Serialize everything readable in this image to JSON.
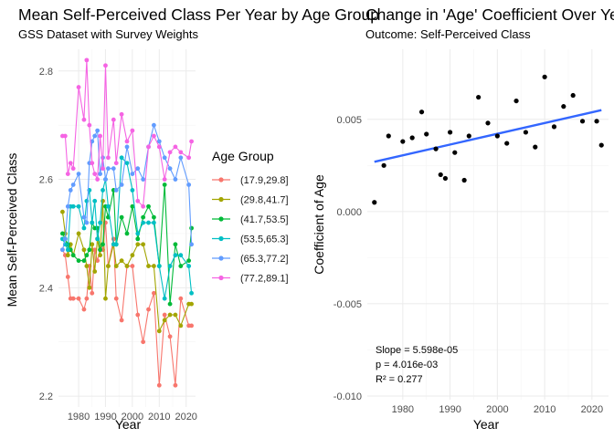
{
  "colors": {
    "background": "#ffffff",
    "grid": "#ebebeb",
    "trend_line": "#3366ff",
    "scatter_points": "#000000"
  },
  "chart_data": [
    {
      "type": "line",
      "title": "Mean Self-Perceived Class Per Year by Age Group",
      "subtitle": "GSS Dataset with Survey Weights",
      "xlabel": "Year",
      "ylabel": "Mean Self-Perceived Class",
      "xlim": [
        1972.5,
        2023.5
      ],
      "ylim": [
        2.18,
        2.84
      ],
      "xticks": [
        1980,
        1990,
        2000,
        2010,
        2020
      ],
      "yticks": [
        2.2,
        2.4,
        2.6,
        2.8
      ],
      "ytick_labels": [
        "2.2",
        "2.4",
        "2.6",
        "2.8"
      ],
      "grid": true,
      "legend": {
        "title": "Age Group",
        "position": "right"
      },
      "x": [
        1974,
        1975,
        1976,
        1977,
        1978,
        1980,
        1982,
        1983,
        1984,
        1985,
        1986,
        1987,
        1988,
        1989,
        1990,
        1991,
        1993,
        1994,
        1996,
        1998,
        2000,
        2002,
        2004,
        2006,
        2008,
        2010,
        2012,
        2014,
        2016,
        2018,
        2021,
        2022
      ],
      "series": [
        {
          "name": "(17.9,29.8]",
          "color": "#f8766d",
          "values": [
            2.47,
            2.46,
            2.42,
            2.38,
            2.38,
            2.38,
            2.36,
            2.38,
            2.44,
            2.39,
            2.47,
            2.45,
            2.47,
            2.47,
            2.52,
            2.44,
            2.49,
            2.38,
            2.34,
            2.44,
            2.44,
            2.35,
            2.3,
            2.36,
            2.39,
            2.22,
            2.35,
            2.31,
            2.22,
            2.38,
            2.33,
            2.33
          ]
        },
        {
          "name": "(29.8,41.7]",
          "color": "#a3a500",
          "values": [
            2.54,
            2.5,
            2.46,
            2.48,
            2.46,
            2.5,
            2.47,
            2.44,
            2.4,
            2.48,
            2.43,
            2.49,
            2.46,
            2.56,
            2.38,
            2.44,
            2.48,
            2.44,
            2.45,
            2.44,
            2.46,
            2.48,
            2.48,
            2.44,
            2.44,
            2.32,
            2.34,
            2.35,
            2.35,
            2.33,
            2.37,
            2.37
          ]
        },
        {
          "name": "(41.7,53.5]",
          "color": "#00ba38",
          "values": [
            2.5,
            2.49,
            2.48,
            2.47,
            2.46,
            2.45,
            2.45,
            2.46,
            2.47,
            2.52,
            2.51,
            2.51,
            2.47,
            2.48,
            2.55,
            2.53,
            2.58,
            2.48,
            2.53,
            2.5,
            2.55,
            2.49,
            2.53,
            2.55,
            2.53,
            2.44,
            2.59,
            2.37,
            2.48,
            2.44,
            2.45,
            2.51
          ]
        },
        {
          "name": "(53.5,65.3]",
          "color": "#00bfc4",
          "values": [
            2.49,
            2.48,
            2.47,
            2.55,
            2.55,
            2.55,
            2.51,
            2.56,
            2.58,
            2.52,
            2.56,
            2.49,
            2.52,
            2.58,
            2.6,
            2.55,
            2.48,
            2.48,
            2.64,
            2.63,
            2.58,
            2.5,
            2.52,
            2.52,
            2.52,
            2.44,
            2.38,
            2.44,
            2.46,
            2.46,
            2.44,
            2.39
          ]
        },
        {
          "name": "(65.3,77.2]",
          "color": "#619cff",
          "values": [
            2.47,
            2.49,
            2.55,
            2.58,
            2.59,
            2.61,
            2.53,
            2.52,
            2.63,
            2.67,
            2.68,
            2.69,
            2.61,
            2.64,
            2.6,
            2.62,
            2.62,
            2.58,
            2.59,
            2.66,
            2.61,
            2.62,
            2.6,
            2.66,
            2.7,
            2.67,
            2.64,
            2.62,
            2.6,
            2.64,
            2.59,
            2.48
          ]
        },
        {
          "name": "(77.2,89.1]",
          "color": "#f564e3",
          "values": [
            2.68,
            2.68,
            2.61,
            2.63,
            2.62,
            2.77,
            2.71,
            2.82,
            2.7,
            2.63,
            2.61,
            2.6,
            2.68,
            2.62,
            2.81,
            2.64,
            2.71,
            2.63,
            2.72,
            2.67,
            2.69,
            2.56,
            2.55,
            2.66,
            2.68,
            2.66,
            2.6,
            2.65,
            2.66,
            2.65,
            2.64,
            2.67
          ]
        }
      ]
    },
    {
      "type": "scatter",
      "title": "Change in 'Age' Coefficient Over Years",
      "subtitle": "Outcome: Self-Perceived Class",
      "xlabel": "Year",
      "ylabel": "Coefficient of Age",
      "xlim": [
        1972.5,
        2023.5
      ],
      "ylim": [
        -0.0102,
        0.0088
      ],
      "xticks": [
        1980,
        1990,
        2000,
        2010,
        2020
      ],
      "yticks": [
        -0.01,
        -0.005,
        0.0,
        0.005
      ],
      "ytick_labels": [
        "-0.010",
        "-0.005",
        "0.000",
        "0.005"
      ],
      "grid": true,
      "points": {
        "x": [
          1974,
          1976,
          1977,
          1980,
          1982,
          1984,
          1985,
          1987,
          1988,
          1989,
          1990,
          1991,
          1993,
          1994,
          1996,
          1998,
          2000,
          2002,
          2004,
          2006,
          2008,
          2010,
          2012,
          2014,
          2016,
          2018,
          2021,
          2022
        ],
        "y": [
          0.0005,
          0.0025,
          0.0041,
          0.0038,
          0.004,
          0.0054,
          0.0042,
          0.0034,
          0.002,
          0.0018,
          0.0043,
          0.0032,
          0.0017,
          0.0041,
          0.0062,
          0.0048,
          0.0041,
          0.0037,
          0.006,
          0.0043,
          0.0035,
          0.0073,
          0.0046,
          0.0057,
          0.0063,
          0.0049,
          0.0049,
          0.0036
        ]
      },
      "trend": {
        "x": [
          1974,
          2022
        ],
        "y": [
          0.0027,
          0.0055
        ]
      },
      "annotations": [
        "Slope = 5.598e-05",
        "p = 4.016e-03",
        "R² = 0.277"
      ]
    }
  ]
}
